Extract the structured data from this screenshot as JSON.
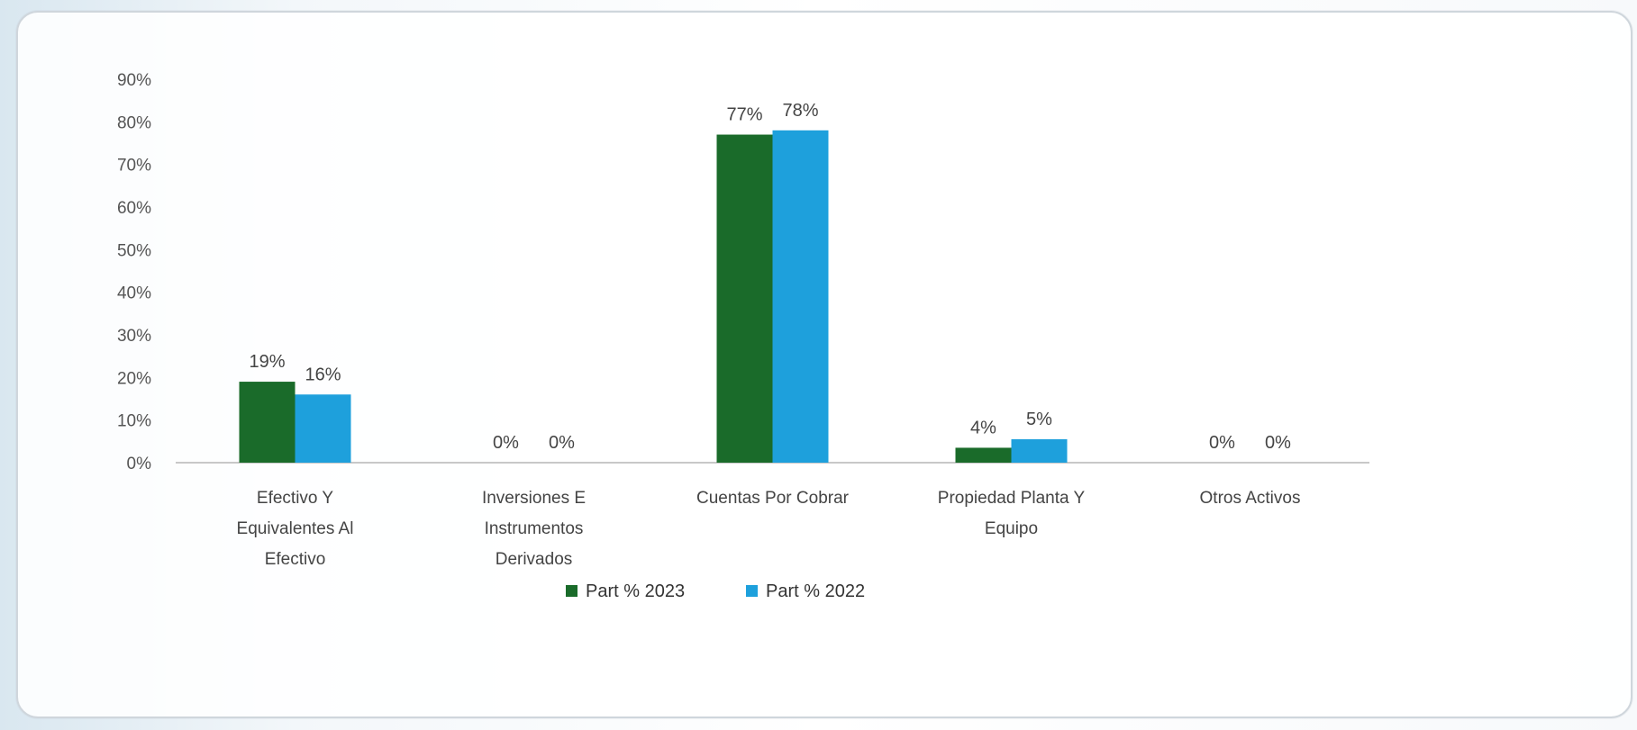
{
  "chart_data": {
    "type": "bar",
    "title": "",
    "xlabel": "",
    "ylabel": "",
    "ylim": [
      0,
      0.9
    ],
    "y_ticks": [
      "0%",
      "10%",
      "20%",
      "30%",
      "40%",
      "50%",
      "60%",
      "70%",
      "80%",
      "90%"
    ],
    "grid": false,
    "legend_position": "bottom",
    "categories": [
      "Efectivo Y Equivalentes Al Efectivo",
      "Inversiones E Instrumentos Derivados",
      "Cuentas Por Cobrar",
      "Propiedad Planta Y Equipo",
      "Otros Activos"
    ],
    "category_lines": [
      [
        "Efectivo Y",
        "Equivalentes Al",
        "Efectivo"
      ],
      [
        "Inversiones E",
        "Instrumentos",
        "Derivados"
      ],
      [
        "Cuentas Por Cobrar"
      ],
      [
        "Propiedad Planta Y",
        "Equipo"
      ],
      [
        "Otros Activos"
      ]
    ],
    "series": [
      {
        "name": "Part % 2023",
        "color": "#1a6b2a",
        "values": [
          0.19,
          0.0,
          0.77,
          0.035,
          0.0
        ],
        "labels": [
          "19%",
          "0%",
          "77%",
          "4%",
          "0%"
        ]
      },
      {
        "name": "Part % 2022",
        "color": "#1ea0dc",
        "values": [
          0.16,
          0.0,
          0.78,
          0.055,
          0.0
        ],
        "labels": [
          "16%",
          "0%",
          "78%",
          "5%",
          "0%"
        ]
      }
    ]
  }
}
